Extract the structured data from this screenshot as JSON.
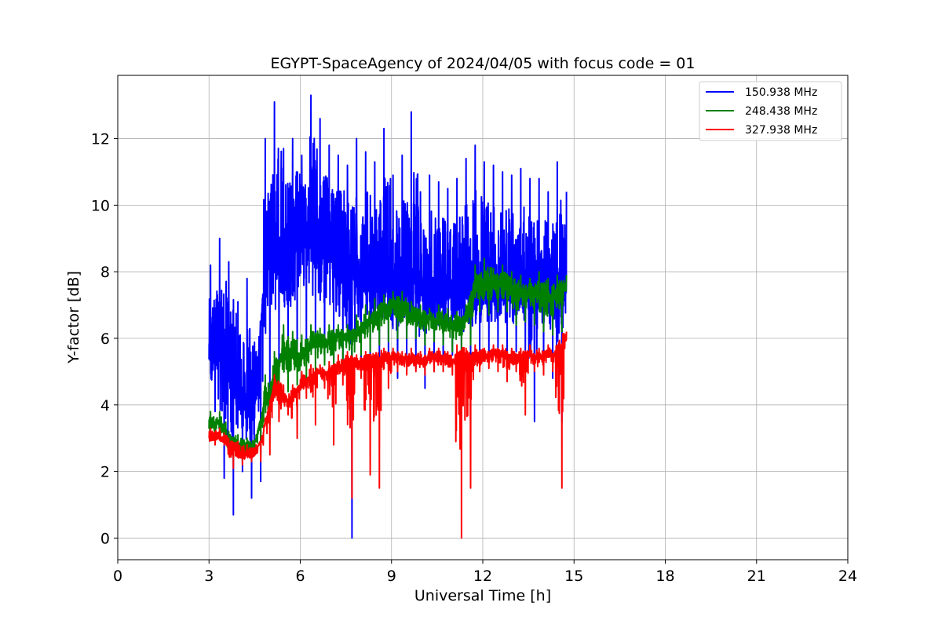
{
  "chart_data": {
    "type": "line",
    "title": "EGYPT-SpaceAgency of 2024/04/05 with focus code = 01",
    "xlabel": "Universal Time [h]",
    "ylabel": "Y-factor [dB]",
    "xlim": [
      0,
      24
    ],
    "ylim": [
      -0.65,
      13.9
    ],
    "xticks": [
      0,
      3,
      6,
      9,
      12,
      15,
      18,
      21,
      24
    ],
    "yticks": [
      0,
      2,
      4,
      6,
      8,
      10,
      12
    ],
    "grid": true,
    "legend_position": "top-right",
    "series": [
      {
        "name": "150.938 MHz",
        "color": "#0000ff",
        "x": [
          3.0,
          3.3,
          3.6,
          3.9,
          4.2,
          4.5,
          4.8,
          5.1,
          5.4,
          5.7,
          6.0,
          6.3,
          6.6,
          6.9,
          7.2,
          7.5,
          7.8,
          8.1,
          8.4,
          8.7,
          9.0,
          9.3,
          9.6,
          9.9,
          10.2,
          10.5,
          10.8,
          11.1,
          11.4,
          11.7,
          12.0,
          12.3,
          12.6,
          12.9,
          13.2,
          13.5,
          13.8,
          14.1,
          14.4,
          14.7
        ],
        "values": [
          5.5,
          6.0,
          5.0,
          4.5,
          4.0,
          4.2,
          7.5,
          8.5,
          8.5,
          8.8,
          9.0,
          9.2,
          8.8,
          8.5,
          8.2,
          8.0,
          7.9,
          7.8,
          7.8,
          7.7,
          7.7,
          7.6,
          7.6,
          7.5,
          7.5,
          7.5,
          7.4,
          7.4,
          7.4,
          7.4,
          7.4,
          7.4,
          7.4,
          7.3,
          7.3,
          7.3,
          7.3,
          7.3,
          7.4,
          7.5
        ],
        "range_low": [
          3.8,
          1.8,
          0.7,
          2.0,
          1.2,
          1.7,
          4.2,
          5.0,
          5.0,
          5.3,
          5.8,
          5.5,
          5.5,
          5.3,
          5.0,
          0.0,
          5.0,
          5.1,
          5.2,
          5.1,
          4.8,
          5.3,
          5.1,
          4.5,
          5.0,
          5.2,
          5.5,
          5.0,
          5.3,
          5.5,
          5.6,
          5.5,
          5.4,
          5.6,
          5.5,
          3.5,
          5.3,
          4.8,
          3.5,
          5.6
        ],
        "range_high": [
          8.2,
          9.0,
          8.3,
          7.1,
          7.8,
          5.6,
          12.0,
          13.1,
          11.7,
          12.0,
          11.5,
          13.3,
          12.6,
          11.8,
          11.5,
          11.2,
          12.0,
          11.6,
          11.3,
          12.3,
          10.9,
          11.5,
          12.8,
          10.4,
          10.9,
          10.7,
          10.5,
          10.8,
          11.4,
          11.8,
          11.3,
          11.2,
          11.0,
          10.9,
          11.1,
          10.8,
          10.8,
          10.4,
          11.3,
          10.4
        ]
      },
      {
        "name": "248.438 MHz",
        "color": "#008000",
        "x": [
          3.0,
          3.3,
          3.6,
          3.9,
          4.2,
          4.5,
          4.8,
          5.1,
          5.4,
          5.7,
          6.0,
          6.3,
          6.6,
          6.9,
          7.2,
          7.5,
          7.8,
          8.1,
          8.4,
          8.7,
          9.0,
          9.3,
          9.6,
          9.9,
          10.2,
          10.5,
          10.8,
          11.1,
          11.4,
          11.7,
          12.0,
          12.3,
          12.6,
          12.9,
          13.2,
          13.5,
          13.8,
          14.1,
          14.4,
          14.7
        ],
        "values": [
          3.3,
          3.5,
          2.9,
          2.8,
          2.7,
          2.8,
          4.0,
          4.6,
          5.5,
          5.5,
          5.4,
          5.8,
          5.8,
          5.8,
          6.0,
          6.0,
          6.1,
          6.3,
          6.6,
          6.8,
          7.0,
          6.9,
          6.7,
          6.6,
          6.6,
          6.5,
          6.4,
          6.3,
          6.6,
          7.6,
          7.6,
          7.5,
          7.6,
          7.4,
          7.3,
          7.3,
          7.3,
          7.2,
          7.3,
          7.5
        ],
        "range_low": [
          3.0,
          3.0,
          2.4,
          2.4,
          2.3,
          2.5,
          3.4,
          4.1,
          4.4,
          4.6,
          4.7,
          5.0,
          5.2,
          5.1,
          5.3,
          5.0,
          5.5,
          5.6,
          5.8,
          5.9,
          6.0,
          6.0,
          6.0,
          5.8,
          5.9,
          5.8,
          5.6,
          5.6,
          5.8,
          6.8,
          6.7,
          6.8,
          6.8,
          6.4,
          6.5,
          6.4,
          6.2,
          6.1,
          6.2,
          6.8
        ],
        "range_high": [
          3.8,
          3.8,
          3.2,
          3.1,
          3.0,
          3.1,
          4.9,
          5.6,
          6.4,
          6.2,
          6.1,
          6.4,
          6.3,
          6.4,
          6.4,
          6.4,
          6.7,
          7.0,
          7.2,
          7.3,
          7.4,
          7.4,
          7.1,
          7.0,
          6.9,
          7.0,
          6.9,
          6.8,
          7.0,
          8.2,
          8.4,
          8.1,
          8.2,
          8.0,
          7.9,
          7.8,
          8.0,
          7.8,
          7.9,
          7.9
        ]
      },
      {
        "name": "327.938 MHz",
        "color": "#ff0000",
        "x": [
          3.0,
          3.3,
          3.6,
          3.9,
          4.2,
          4.5,
          4.8,
          5.1,
          5.4,
          5.7,
          6.0,
          6.3,
          6.6,
          6.9,
          7.2,
          7.5,
          7.8,
          8.1,
          8.4,
          8.7,
          9.0,
          9.3,
          9.6,
          9.9,
          10.2,
          10.5,
          10.8,
          11.1,
          11.4,
          11.7,
          12.0,
          12.3,
          12.6,
          12.9,
          13.2,
          13.5,
          13.8,
          14.1,
          14.4,
          14.7
        ],
        "values": [
          3.0,
          3.1,
          2.8,
          2.6,
          2.5,
          2.5,
          3.2,
          4.5,
          4.2,
          4.1,
          4.6,
          4.8,
          5.0,
          4.9,
          5.1,
          5.2,
          5.2,
          5.3,
          5.3,
          5.4,
          5.4,
          5.4,
          5.4,
          5.3,
          5.4,
          5.4,
          5.4,
          5.3,
          5.3,
          5.3,
          5.4,
          5.5,
          5.5,
          5.4,
          5.4,
          5.5,
          5.4,
          5.5,
          5.5,
          6.0
        ],
        "range_low": [
          2.8,
          2.8,
          2.1,
          2.2,
          2.3,
          2.3,
          2.5,
          3.5,
          3.7,
          3.0,
          4.2,
          3.4,
          4.5,
          2.8,
          4.6,
          1.2,
          4.8,
          1.9,
          1.5,
          4.5,
          5.0,
          4.9,
          5.0,
          4.9,
          5.0,
          5.0,
          4.9,
          0.0,
          1.5,
          5.0,
          5.1,
          5.0,
          4.7,
          5.0,
          3.7,
          5.0,
          4.9,
          5.0,
          1.5,
          5.7
        ],
        "range_high": [
          3.3,
          3.3,
          3.0,
          2.9,
          2.8,
          2.8,
          3.6,
          4.9,
          4.6,
          4.6,
          5.0,
          5.2,
          5.2,
          5.3,
          5.5,
          5.6,
          5.5,
          5.6,
          5.5,
          5.7,
          5.7,
          5.6,
          5.7,
          5.6,
          5.7,
          5.7,
          5.6,
          5.8,
          5.7,
          5.8,
          5.7,
          5.8,
          5.8,
          5.7,
          5.7,
          5.8,
          5.7,
          5.8,
          5.8,
          6.2
        ]
      }
    ]
  }
}
